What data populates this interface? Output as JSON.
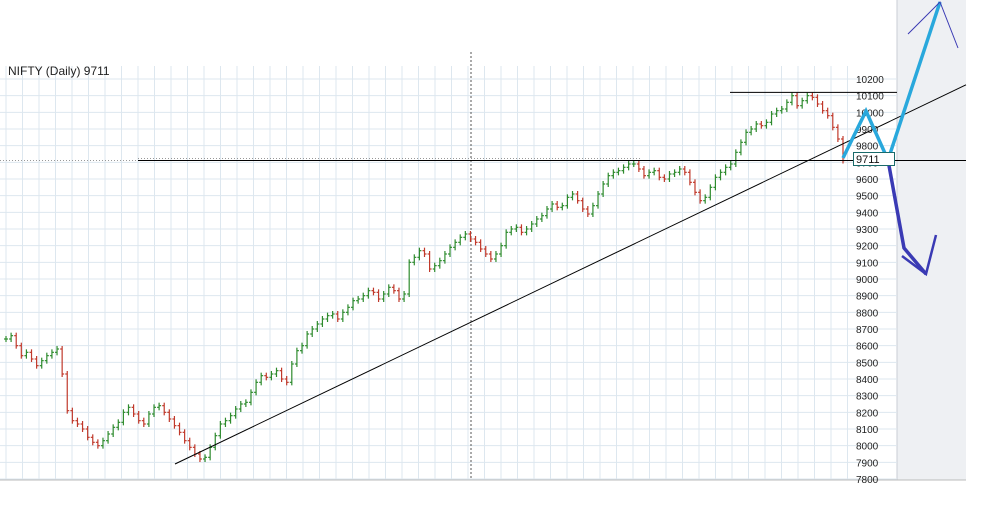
{
  "chart": {
    "title": "NIFTY (Daily) 9711",
    "last_price_tag": "9711"
  },
  "colors": {
    "up_bar": "#2e8b2e",
    "down_bar": "#c0392b",
    "grid": "#dde7ef",
    "trendline": "#000000",
    "projection_up": "#29a8dc",
    "projection_down": "#3a3ab4",
    "right_panel": "#eef0f3"
  },
  "chart_data": {
    "type": "bar",
    "title": "NIFTY (Daily) 9711",
    "xlabel": "",
    "ylabel": "",
    "ylim": [
      7800,
      10250
    ],
    "y_ticks": [
      7800,
      7900,
      8000,
      8100,
      8200,
      8300,
      8400,
      8500,
      8600,
      8700,
      8800,
      8900,
      9000,
      9100,
      9200,
      9300,
      9400,
      9500,
      9600,
      9700,
      9800,
      9900,
      10000,
      10100,
      10200
    ],
    "grid": true,
    "series": [
      {
        "values": [
          8640,
          8660,
          8600,
          8540,
          8560,
          8520,
          8480,
          8510,
          8540,
          8560,
          8580,
          8430,
          8210,
          8150,
          8130,
          8100,
          8050,
          8020,
          8000,
          8030,
          8070,
          8110,
          8140,
          8200,
          8230,
          8190,
          8150,
          8130,
          8190,
          8230,
          8240,
          8200,
          8160,
          8120,
          8080,
          8030,
          7990,
          7950,
          7920,
          7930,
          7990,
          8060,
          8130,
          8150,
          8180,
          8220,
          8250,
          8260,
          8320,
          8380,
          8420,
          8410,
          8430,
          8450,
          8400,
          8380,
          8490,
          8570,
          8600,
          8670,
          8700,
          8730,
          8760,
          8780,
          8790,
          8760,
          8800,
          8830,
          8870,
          8880,
          8900,
          8930,
          8920,
          8880,
          8910,
          8950,
          8930,
          8880,
          8910,
          9100,
          9130,
          9170,
          9150,
          9060,
          9080,
          9110,
          9150,
          9190,
          9220,
          9250,
          9270,
          9240,
          9220,
          9180,
          9150,
          9120,
          9150,
          9200,
          9280,
          9300,
          9310,
          9280,
          9300,
          9330,
          9360,
          9380,
          9420,
          9450,
          9430,
          9440,
          9490,
          9510,
          9470,
          9420,
          9390,
          9440,
          9510,
          9570,
          9620,
          9640,
          9650,
          9670,
          9690,
          9690,
          9660,
          9620,
          9640,
          9650,
          9610,
          9600,
          9630,
          9640,
          9660,
          9640,
          9580,
          9520,
          9470,
          9490,
          9550,
          9610,
          9640,
          9670,
          9690,
          9760,
          9820,
          9880,
          9900,
          9930,
          9920,
          9940,
          9990,
          10010,
          10020,
          10060,
          10100,
          10040,
          10070,
          10100,
          10090,
          10050,
          10010,
          9980,
          9910,
          9840,
          9711
        ]
      }
    ],
    "annotations": [
      {
        "type": "horizontal_line",
        "value": 10120
      },
      {
        "type": "horizontal_line",
        "value": 9711
      },
      {
        "type": "trend_line",
        "from_value": 7890,
        "to_value": 10165
      }
    ]
  }
}
